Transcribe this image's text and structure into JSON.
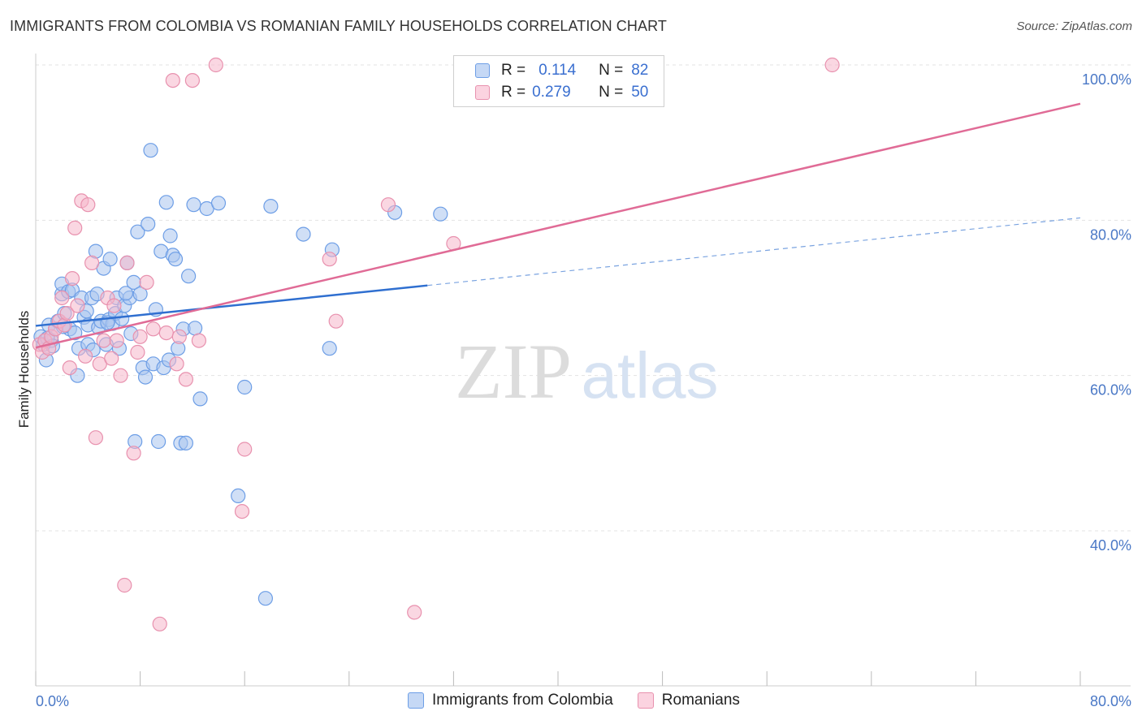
{
  "header": {
    "title": "IMMIGRANTS FROM COLOMBIA VS ROMANIAN FAMILY HOUSEHOLDS CORRELATION CHART",
    "source": "Source: ZipAtlas.com"
  },
  "watermark": {
    "zip": "ZIP",
    "atlas": "atlas"
  },
  "legend": {
    "rows": [
      {
        "r_label": "R =",
        "r_value": "0.114",
        "n_label": "N =",
        "n_value": "82",
        "color": "#a9c4ee"
      },
      {
        "r_label": "R =",
        "r_value": "0.279",
        "n_label": "N =",
        "n_value": "50",
        "color": "#f5b7cb"
      }
    ]
  },
  "bottom_legend": {
    "items": [
      {
        "label": "Immigrants from Colombia",
        "color": "#a9c4ee"
      },
      {
        "label": "Romanians",
        "color": "#f5b7cb"
      }
    ]
  },
  "chart_data": {
    "type": "scatter",
    "title": "IMMIGRANTS FROM COLOMBIA VS ROMANIAN FAMILY HOUSEHOLDS CORRELATION CHART",
    "xlabel": "",
    "ylabel": "Family Households",
    "xlim": [
      0,
      80
    ],
    "ylim": [
      20,
      102
    ],
    "x_tick_labels": [
      "0.0%",
      "80.0%"
    ],
    "y_ticks": [
      40,
      60,
      80,
      100
    ],
    "y_tick_labels": [
      "40.0%",
      "60.0%",
      "80.0%",
      "100.0%"
    ],
    "grid": true,
    "legend_position": "top-center",
    "series": [
      {
        "name": "Immigrants from Colombia",
        "color": "#6d9ee6",
        "fill": "#a9c4ee",
        "trend": {
          "x": [
            0,
            30
          ],
          "y": [
            66.4,
            71.6
          ],
          "dashed_to": [
            80,
            80.3
          ]
        },
        "points": [
          [
            0.4,
            65
          ],
          [
            0.6,
            64
          ],
          [
            0.8,
            62
          ],
          [
            1,
            66.5
          ],
          [
            1.2,
            64.5
          ],
          [
            1.5,
            66
          ],
          [
            1.7,
            67
          ],
          [
            2,
            70.5
          ],
          [
            2,
            71.8
          ],
          [
            2.2,
            68
          ],
          [
            2.5,
            70.8
          ],
          [
            2.6,
            66
          ],
          [
            2.8,
            71
          ],
          [
            3,
            65.5
          ],
          [
            3.2,
            60
          ],
          [
            3.3,
            63.5
          ],
          [
            3.5,
            70
          ],
          [
            3.7,
            67.5
          ],
          [
            4,
            66.5
          ],
          [
            4,
            64
          ],
          [
            4.3,
            70
          ],
          [
            4.4,
            63.3
          ],
          [
            4.6,
            76
          ],
          [
            4.7,
            70.5
          ],
          [
            4.8,
            66.2
          ],
          [
            5,
            67
          ],
          [
            5.2,
            73.8
          ],
          [
            5.4,
            64
          ],
          [
            5.6,
            67.2
          ],
          [
            5.7,
            75
          ],
          [
            5.9,
            66.7
          ],
          [
            6.1,
            68
          ],
          [
            6.2,
            70
          ],
          [
            6.4,
            63.5
          ],
          [
            6.6,
            67.3
          ],
          [
            6.8,
            69
          ],
          [
            7,
            74.5
          ],
          [
            7.2,
            70
          ],
          [
            7.5,
            72
          ],
          [
            7.6,
            51.5
          ],
          [
            7.8,
            78.5
          ],
          [
            8,
            70.5
          ],
          [
            8.2,
            61
          ],
          [
            8.4,
            59.8
          ],
          [
            8.6,
            79.5
          ],
          [
            8.8,
            89
          ],
          [
            9,
            61.5
          ],
          [
            9.2,
            68.5
          ],
          [
            9.4,
            51.5
          ],
          [
            9.6,
            76
          ],
          [
            9.8,
            61
          ],
          [
            10,
            82.3
          ],
          [
            10.2,
            62
          ],
          [
            10.3,
            78
          ],
          [
            10.5,
            75.5
          ],
          [
            10.7,
            75
          ],
          [
            10.9,
            63.5
          ],
          [
            11.1,
            51.3
          ],
          [
            11.3,
            66
          ],
          [
            11.5,
            51.3
          ],
          [
            11.7,
            72.8
          ],
          [
            12.1,
            82
          ],
          [
            12.6,
            57
          ],
          [
            13.1,
            81.5
          ],
          [
            14,
            82.2
          ],
          [
            15.5,
            44.5
          ],
          [
            16,
            58.5
          ],
          [
            17.6,
            31.3
          ],
          [
            18,
            81.8
          ],
          [
            20.5,
            78.2
          ],
          [
            22.5,
            63.5
          ],
          [
            22.7,
            76.2
          ],
          [
            27.5,
            81.0
          ],
          [
            31,
            80.8
          ],
          [
            0.9,
            64.8
          ],
          [
            1.3,
            63.8
          ],
          [
            2.1,
            66.3
          ],
          [
            3.9,
            68.3
          ],
          [
            5.5,
            66.8
          ],
          [
            6.9,
            70.6
          ],
          [
            7.3,
            65.4
          ],
          [
            12.2,
            66.1
          ]
        ]
      },
      {
        "name": "Romanians",
        "color": "#e891ae",
        "fill": "#f5b7cb",
        "trend": {
          "x": [
            0,
            80
          ],
          "y": [
            63.6,
            95
          ]
        },
        "points": [
          [
            0.3,
            64
          ],
          [
            0.5,
            63
          ],
          [
            0.7,
            64.5
          ],
          [
            1,
            63.5
          ],
          [
            1.2,
            65
          ],
          [
            1.5,
            66
          ],
          [
            1.8,
            67
          ],
          [
            2,
            70
          ],
          [
            2.2,
            66.5
          ],
          [
            2.4,
            68
          ],
          [
            2.6,
            61
          ],
          [
            2.8,
            72.5
          ],
          [
            3,
            79
          ],
          [
            3.2,
            69
          ],
          [
            3.5,
            82.5
          ],
          [
            3.8,
            62.5
          ],
          [
            4,
            82
          ],
          [
            4.3,
            74.5
          ],
          [
            4.6,
            52
          ],
          [
            4.9,
            61.5
          ],
          [
            5.2,
            64.5
          ],
          [
            5.5,
            70
          ],
          [
            5.8,
            62.2
          ],
          [
            6,
            69
          ],
          [
            6.2,
            64.5
          ],
          [
            6.5,
            60
          ],
          [
            6.8,
            33
          ],
          [
            7,
            74.5
          ],
          [
            7.5,
            50
          ],
          [
            7.8,
            63
          ],
          [
            8,
            65
          ],
          [
            8.5,
            72
          ],
          [
            9,
            66
          ],
          [
            9.5,
            28
          ],
          [
            10,
            65.5
          ],
          [
            10.5,
            98
          ],
          [
            10.8,
            61.5
          ],
          [
            11,
            65
          ],
          [
            11.5,
            59.5
          ],
          [
            12,
            98
          ],
          [
            12.5,
            64.5
          ],
          [
            13.8,
            100
          ],
          [
            15.8,
            42.5
          ],
          [
            16,
            50.5
          ],
          [
            22.5,
            75
          ],
          [
            23,
            67
          ],
          [
            27,
            82
          ],
          [
            29,
            29.5
          ],
          [
            32,
            77
          ],
          [
            61,
            100
          ]
        ]
      }
    ]
  }
}
